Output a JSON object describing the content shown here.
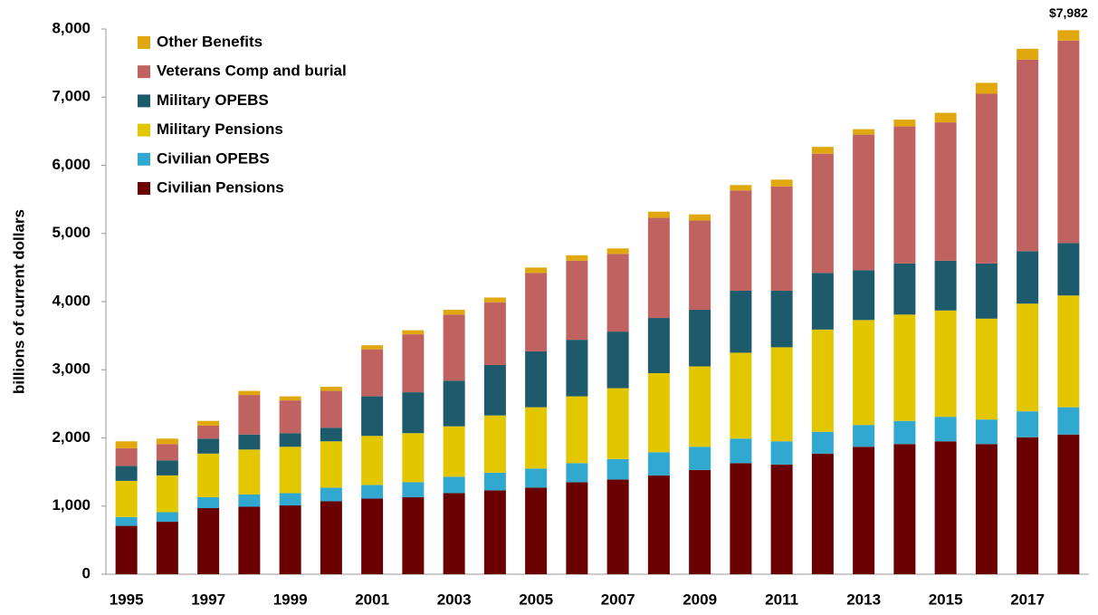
{
  "chart_data": {
    "type": "stacked_bar",
    "y_label": "billions of current dollars",
    "annotation": "$7,982",
    "categories": [
      "1995",
      null,
      "1997",
      null,
      "1999",
      null,
      "2001",
      null,
      "2003",
      null,
      "2005",
      null,
      "2007",
      null,
      "2009",
      null,
      "2011",
      null,
      "2013",
      null,
      "2015",
      null,
      "2017",
      null
    ],
    "series": [
      {
        "name": "Civilian Pensions",
        "color": "#6b0000",
        "values": [
          710,
          770,
          970,
          990,
          1010,
          1070,
          1110,
          1130,
          1190,
          1230,
          1270,
          1350,
          1390,
          1450,
          1530,
          1630,
          1610,
          1770,
          1870,
          1910,
          1950,
          1910,
          2010,
          2050
        ]
      },
      {
        "name": "Civilian OPEBS",
        "color": "#31a8cf",
        "values": [
          130,
          140,
          160,
          180,
          180,
          200,
          200,
          220,
          240,
          260,
          280,
          280,
          300,
          340,
          340,
          360,
          340,
          320,
          320,
          340,
          360,
          360,
          380,
          400
        ]
      },
      {
        "name": "Military Pensions",
        "color": "#e2c600",
        "values": [
          530,
          540,
          640,
          660,
          680,
          680,
          720,
          720,
          740,
          840,
          900,
          980,
          1040,
          1160,
          1180,
          1260,
          1380,
          1500,
          1540,
          1560,
          1560,
          1480,
          1580,
          1640
        ]
      },
      {
        "name": "Military OPEBS",
        "color": "#1d5a6c",
        "values": [
          220,
          220,
          220,
          220,
          200,
          200,
          580,
          600,
          670,
          740,
          820,
          830,
          830,
          810,
          830,
          910,
          830,
          830,
          730,
          750,
          730,
          810,
          770,
          770
        ]
      },
      {
        "name": "Veterans Comp and burial",
        "color": "#c0625f",
        "values": [
          260,
          240,
          190,
          580,
          480,
          540,
          690,
          850,
          970,
          920,
          1150,
          1160,
          1140,
          1470,
          1310,
          1470,
          1530,
          1750,
          1990,
          2010,
          2030,
          2490,
          2810,
          2970
        ]
      },
      {
        "name": "Other Benefits",
        "color": "#e0a70f",
        "values": [
          100,
          80,
          70,
          60,
          60,
          60,
          60,
          60,
          70,
          70,
          80,
          80,
          80,
          90,
          90,
          80,
          100,
          100,
          80,
          100,
          140,
          160,
          160,
          152
        ]
      }
    ],
    "ylim": [
      0,
      8000
    ],
    "yticks": [
      0,
      {
        "value": 1000,
        "label": "1,000"
      },
      {
        "value": 2000,
        "label": "2,000"
      },
      {
        "value": 3000,
        "label": "3,000"
      },
      {
        "value": 4000,
        "label": "4,000"
      },
      {
        "value": 5000,
        "label": "5,000"
      },
      {
        "value": 6000,
        "label": "6,000"
      },
      {
        "value": 7000,
        "label": "7,000"
      },
      {
        "value": 8000,
        "label": "8,000"
      }
    ],
    "grid": false,
    "legend": "top-left"
  }
}
